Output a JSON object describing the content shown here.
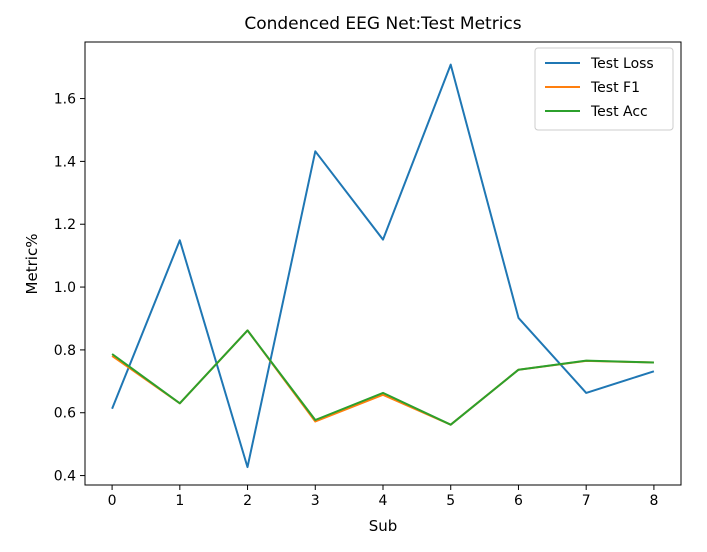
{
  "chart_data": {
    "type": "line",
    "title": "Condenced EEG Net:Test Metrics",
    "xlabel": "Sub",
    "ylabel": "Metric%",
    "x": [
      0,
      1,
      2,
      3,
      4,
      5,
      6,
      7,
      8
    ],
    "xlim": [
      -0.4,
      8.4
    ],
    "ylim": [
      0.37,
      1.78
    ],
    "xticks": [
      0,
      1,
      2,
      3,
      4,
      5,
      6,
      7,
      8
    ],
    "yticks": [
      0.4,
      0.6,
      0.8,
      1.0,
      1.2,
      1.4,
      1.6
    ],
    "ytick_labels": [
      "0.4",
      "0.6",
      "0.8",
      "1.0",
      "1.2",
      "1.4",
      "1.6"
    ],
    "grid": false,
    "legend_position": "top-right",
    "series": [
      {
        "name": "Test Loss",
        "color": "#1f77b4",
        "values": [
          0.613,
          1.149,
          0.427,
          1.432,
          1.151,
          1.708,
          0.902,
          0.663,
          0.732
        ]
      },
      {
        "name": "Test F1",
        "color": "#ff7f0e",
        "values": [
          0.781,
          0.63,
          0.862,
          0.572,
          0.657,
          0.562,
          0.737,
          0.765,
          0.76
        ]
      },
      {
        "name": "Test Acc",
        "color": "#2ca02c",
        "values": [
          0.787,
          0.63,
          0.862,
          0.577,
          0.663,
          0.562,
          0.737,
          0.766,
          0.76
        ]
      }
    ]
  }
}
